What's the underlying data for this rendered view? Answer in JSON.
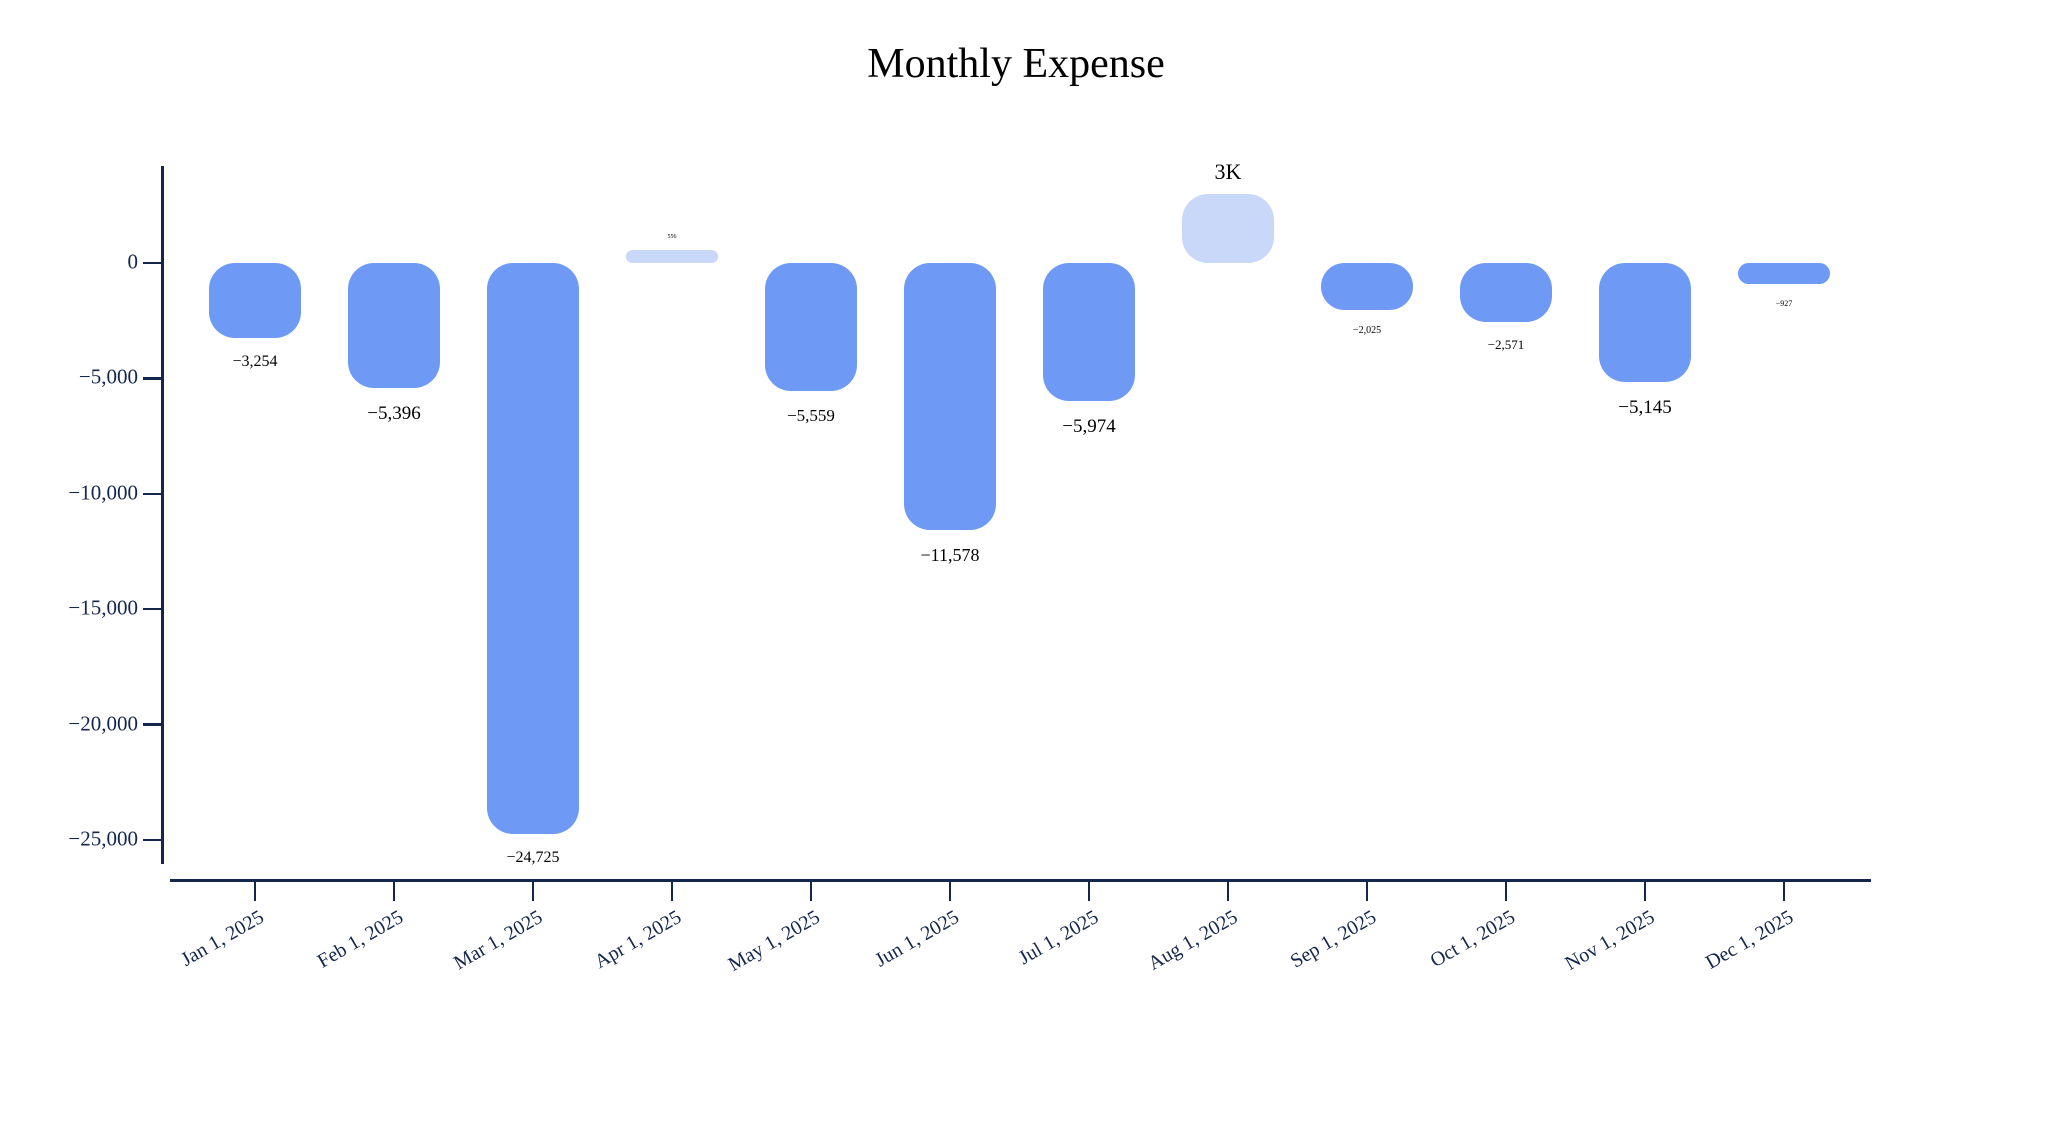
{
  "title": "Monthly Expense",
  "colors": {
    "bar": "#6e9af5",
    "bar_light": "#c9d7f9",
    "axis": "#14264d",
    "value_text": "#000000",
    "background": "#ffffff"
  },
  "chart_data": {
    "type": "bar",
    "title": "Monthly Expense",
    "xlabel": "",
    "ylabel": "",
    "ylim": [
      -26000,
      4200
    ],
    "grid": false,
    "legend": false,
    "x_tick_rotation": -30,
    "y_ticks": [
      {
        "value": 0,
        "label": "0"
      },
      {
        "value": -5000,
        "label": "−5,000"
      },
      {
        "value": -10000,
        "label": "−10,000"
      },
      {
        "value": -15000,
        "label": "−15,000"
      },
      {
        "value": -20000,
        "label": "−20,000"
      },
      {
        "value": -25000,
        "label": "−25,000"
      }
    ],
    "categories": [
      "Jan 1, 2025",
      "Feb 1, 2025",
      "Mar 1, 2025",
      "Apr 1, 2025",
      "May 1, 2025",
      "Jun 1, 2025",
      "Jul 1, 2025",
      "Aug 1, 2025",
      "Sep 1, 2025",
      "Oct 1, 2025",
      "Nov 1, 2025",
      "Dec 1, 2025"
    ],
    "values": [
      -3254,
      -5396,
      -24725,
      556,
      -5559,
      -11578,
      -5974,
      3000,
      -2025,
      -2571,
      -5145,
      -927
    ],
    "points": [
      {
        "category": "Jan 1, 2025",
        "value": -3254,
        "label": "−3,254",
        "label_size": 16,
        "color_key": "bar"
      },
      {
        "category": "Feb 1, 2025",
        "value": -5396,
        "label": "−5,396",
        "label_size": 19,
        "color_key": "bar"
      },
      {
        "category": "Mar 1, 2025",
        "value": -24725,
        "label": "−24,725",
        "label_size": 16,
        "color_key": "bar"
      },
      {
        "category": "Apr 1, 2025",
        "value": 556,
        "label": "556",
        "label_size": 6,
        "color_key": "bar_light"
      },
      {
        "category": "May 1, 2025",
        "value": -5559,
        "label": "−5,559",
        "label_size": 17,
        "color_key": "bar"
      },
      {
        "category": "Jun 1, 2025",
        "value": -11578,
        "label": "−11,578",
        "label_size": 18,
        "color_key": "bar"
      },
      {
        "category": "Jul 1, 2025",
        "value": -5974,
        "label": "−5,974",
        "label_size": 19,
        "color_key": "bar"
      },
      {
        "category": "Aug 1, 2025",
        "value": 3000,
        "label": "3K",
        "label_size": 22,
        "color_key": "bar_light"
      },
      {
        "category": "Sep 1, 2025",
        "value": -2025,
        "label": "−2,025",
        "label_size": 10,
        "color_key": "bar"
      },
      {
        "category": "Oct 1, 2025",
        "value": -2571,
        "label": "−2,571",
        "label_size": 13,
        "color_key": "bar"
      },
      {
        "category": "Nov 1, 2025",
        "value": -5145,
        "label": "−5,145",
        "label_size": 19,
        "color_key": "bar"
      },
      {
        "category": "Dec 1, 2025",
        "value": -927,
        "label": "−927",
        "label_size": 8,
        "color_key": "bar"
      }
    ]
  }
}
